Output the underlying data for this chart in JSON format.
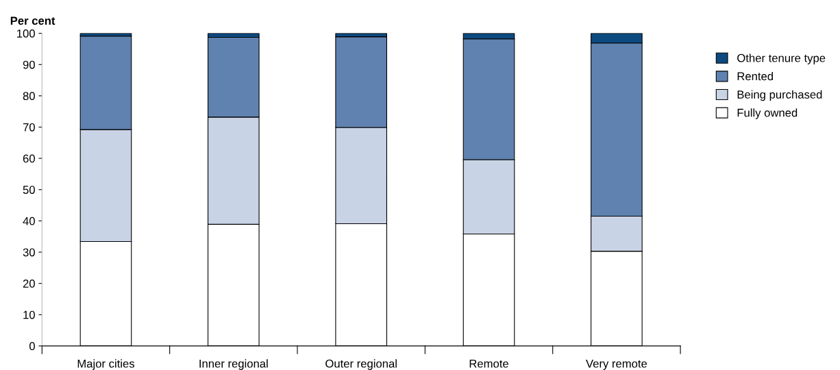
{
  "chart_data": {
    "type": "bar",
    "stacked": true,
    "ylabel": "Per cent",
    "categories": [
      "Major cities",
      "Inner regional",
      "Outer regional",
      "Remote",
      "Very remote"
    ],
    "series": [
      {
        "name": "Fully owned",
        "color": "#ffffff",
        "values": [
          33.4,
          38.9,
          39.1,
          35.8,
          30.3
        ]
      },
      {
        "name": "Being purchased",
        "color": "#c9d3e6",
        "values": [
          35.8,
          34.3,
          30.8,
          23.8,
          11.2
        ]
      },
      {
        "name": "Rented",
        "color": "#5f82b0",
        "values": [
          29.9,
          25.5,
          29.0,
          38.6,
          55.4
        ]
      },
      {
        "name": "Other tenure type",
        "color": "#0d4a80",
        "values": [
          0.9,
          1.3,
          1.1,
          1.8,
          3.1
        ]
      }
    ],
    "ylim": [
      0,
      100
    ],
    "yticks": [
      0,
      10,
      20,
      30,
      40,
      50,
      60,
      70,
      80,
      90,
      100
    ],
    "grid": false,
    "legend": "top right"
  }
}
